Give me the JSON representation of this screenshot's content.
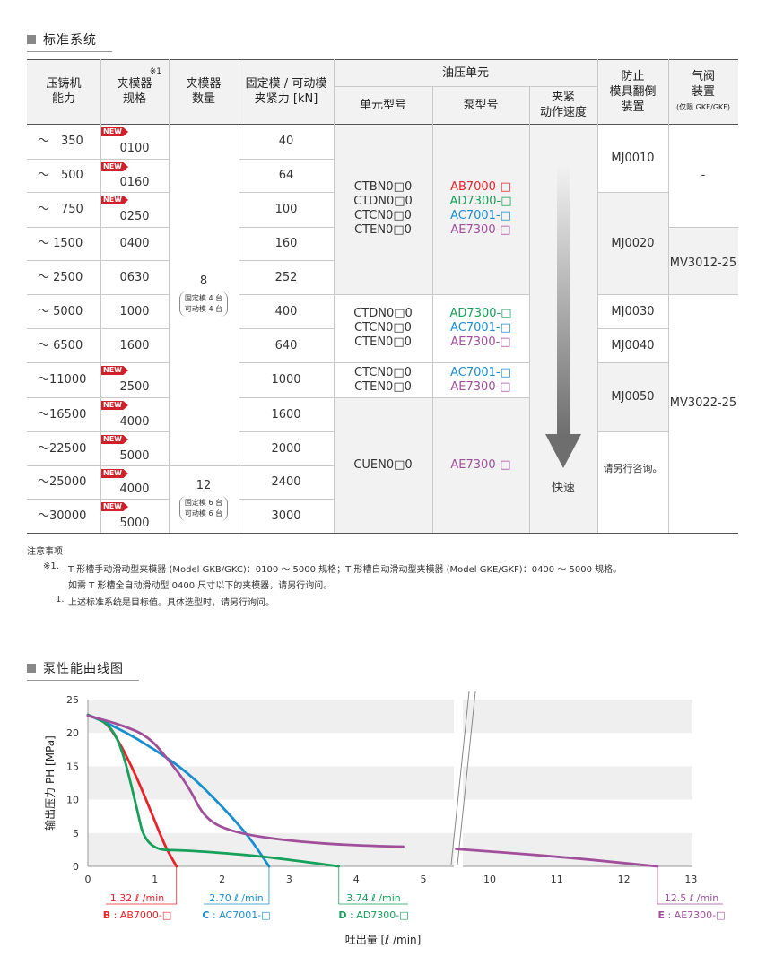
{
  "section1": {
    "title": "标准系统"
  },
  "table": {
    "headers": {
      "capacity": "压铸机\n能力",
      "clamp_spec": "夹模器\n规格",
      "clamp_spec_note": "※1",
      "clamp_count": "夹模器\n数量",
      "clamp_force": "固定模 / 可动模\n夹紧力 [kN]",
      "hydraulic_unit": "油压单元",
      "unit_model": "单元型号",
      "pump_model": "泵型号",
      "clamp_speed": "夹紧\n动作速度",
      "anti_flip": "防止\n模具翻倒\n装置",
      "air_valve": "气阀\n装置",
      "air_valve_sub": "(仅限 GKE/GKF)"
    },
    "rows": [
      {
        "capacity": "～　350",
        "spec": "0100",
        "new": true,
        "force": "40"
      },
      {
        "capacity": "～　500",
        "spec": "0160",
        "new": true,
        "force": "64"
      },
      {
        "capacity": "～　750",
        "spec": "0250",
        "new": true,
        "force": "100"
      },
      {
        "capacity": "～ 1500",
        "spec": "0400",
        "new": false,
        "force": "160"
      },
      {
        "capacity": "～ 2500",
        "spec": "0630",
        "new": false,
        "force": "252"
      },
      {
        "capacity": "～ 5000",
        "spec": "1000",
        "new": false,
        "force": "400"
      },
      {
        "capacity": "～ 6500",
        "spec": "1600",
        "new": false,
        "force": "640"
      },
      {
        "capacity": "～11000",
        "spec": "2500",
        "new": true,
        "force": "1000"
      },
      {
        "capacity": "～16500",
        "spec": "4000",
        "new": true,
        "force": "1600"
      },
      {
        "capacity": "～22500",
        "spec": "5000",
        "new": true,
        "force": "2000"
      },
      {
        "capacity": "～25000",
        "spec": "4000",
        "new": true,
        "force": "2400"
      },
      {
        "capacity": "～30000",
        "spec": "5000",
        "new": true,
        "force": "3000"
      }
    ],
    "new_badge": "NEW",
    "count_groups": [
      {
        "count": "8",
        "detail": "固定模 4 台\n可动模 4 台"
      },
      {
        "count": "12",
        "detail": "固定模 6 台\n可动模 6 台"
      }
    ],
    "unit_groups": [
      {
        "units": "CTBN0□0\nCTDN0□0\nCTCN0□0\nCTEN0□0",
        "pumps": [
          {
            "text": "AB7000-□",
            "color": "red"
          },
          {
            "text": "AD7300-□",
            "color": "green"
          },
          {
            "text": "AC7001-□",
            "color": "blue"
          },
          {
            "text": "AE7300-□",
            "color": "purple"
          }
        ]
      },
      {
        "units": "CTDN0□0\nCTCN0□0\nCTEN0□0",
        "pumps": [
          {
            "text": "AD7300-□",
            "color": "green"
          },
          {
            "text": "AC7001-□",
            "color": "blue"
          },
          {
            "text": "AE7300-□",
            "color": "purple"
          }
        ]
      },
      {
        "units": "CTCN0□0\nCTEN0□0",
        "pumps": [
          {
            "text": "AC7001-□",
            "color": "blue"
          },
          {
            "text": "AE7300-□",
            "color": "purple"
          }
        ]
      },
      {
        "units": "CUEN0□0",
        "pumps": [
          {
            "text": "AE7300-□",
            "color": "purple"
          }
        ]
      }
    ],
    "speed_label": "快速",
    "anti_flip": [
      "MJ0010",
      "MJ0020",
      "MJ0030",
      "MJ0040",
      "MJ0050",
      "请另行咨询。"
    ],
    "air_valve": [
      "-",
      "MV3012-25",
      "MV3022-25"
    ]
  },
  "notes": {
    "title": "注意事项",
    "n1_mark": "※1.",
    "n1": "T 形槽手动滑动型夹模器 (Model GKB/GKC)：0100 ～ 5000 规格；T 形槽自动滑动型夹模器 (Model GKE/GKF)：0400 ～ 5000 规格。",
    "n1b": "如需 T 形槽全自动滑动型 0400 尺寸以下的夹模器，请另行询问。",
    "n2_mark": "1.",
    "n2": "上述标准系统是目标值。具体选型时，请另行询问。"
  },
  "section2": {
    "title": "泵性能曲线图"
  },
  "colors": {
    "red": "#e8232a",
    "green": "#16a05a",
    "blue": "#1a8fd0",
    "purple": "#a0509a",
    "band": "#efefef"
  },
  "chart_data": {
    "type": "line",
    "xlabel": "吐出量 [ℓ /min]",
    "ylabel": "输出压力 PH [MPa]",
    "xticks": [
      "0",
      "1",
      "2",
      "3",
      "4",
      "5",
      "10",
      "11",
      "12",
      "13"
    ],
    "yticks": [
      "0",
      "5",
      "10",
      "15",
      "20",
      "25"
    ],
    "ylim": [
      0,
      25
    ],
    "axis_break": "between 5.5 and 9.5",
    "series": [
      {
        "name": "B : AB7000-□",
        "flow_label": "1.32 ℓ /min",
        "color": "red",
        "points": [
          [
            0,
            22.6
          ],
          [
            0.25,
            21.8
          ],
          [
            0.45,
            19
          ],
          [
            0.7,
            14
          ],
          [
            0.95,
            8
          ],
          [
            1.15,
            3
          ],
          [
            1.32,
            0
          ]
        ]
      },
      {
        "name": "C : AC7001-□",
        "flow_label": "2.70 ℓ /min",
        "color": "blue",
        "points": [
          [
            0,
            22.7
          ],
          [
            0.5,
            20.5
          ],
          [
            1.0,
            17.5
          ],
          [
            1.5,
            14
          ],
          [
            2.0,
            9
          ],
          [
            2.4,
            4.5
          ],
          [
            2.7,
            0
          ]
        ]
      },
      {
        "name": "D : AD7300-□",
        "flow_label": "3.74 ℓ /min",
        "color": "green",
        "points": [
          [
            0,
            22.7
          ],
          [
            0.3,
            21.5
          ],
          [
            0.5,
            18
          ],
          [
            0.7,
            10
          ],
          [
            0.87,
            2.5
          ],
          [
            1.5,
            2.4
          ],
          [
            2.5,
            1.6
          ],
          [
            3.0,
            1.0
          ],
          [
            3.74,
            0
          ]
        ]
      },
      {
        "name": "E : AE7300-□",
        "flow_label": "12.5 ℓ /min",
        "color": "purple",
        "points": [
          [
            0,
            22.6
          ],
          [
            0.5,
            21.2
          ],
          [
            0.9,
            19.5
          ],
          [
            1.2,
            16
          ],
          [
            1.5,
            12
          ],
          [
            1.75,
            7
          ],
          [
            2.2,
            5
          ],
          [
            3,
            3.8
          ],
          [
            4,
            3.1
          ],
          [
            5.4,
            2.8
          ],
          [
            9.5,
            2.6
          ],
          [
            11,
            1.5
          ],
          [
            12.5,
            0
          ]
        ]
      }
    ]
  }
}
